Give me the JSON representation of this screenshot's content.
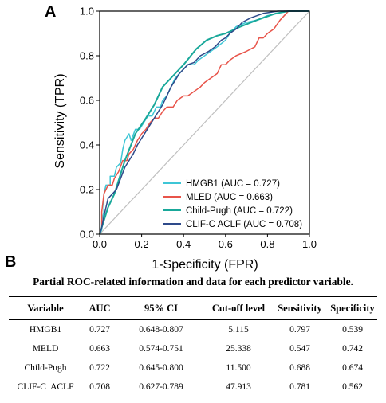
{
  "panel_a_label": "A",
  "panel_b_label": "B",
  "chart_data": {
    "type": "line",
    "title": "",
    "xlabel": "1-Specificity (FPR)",
    "ylabel": "Sensitivity (TPR)",
    "xlim": [
      0,
      1
    ],
    "ylim": [
      0,
      1
    ],
    "x_ticks": [
      "0.0",
      "0.2",
      "0.4",
      "0.6",
      "0.8",
      "1.0"
    ],
    "y_ticks": [
      "0.0",
      "0.2",
      "0.4",
      "0.6",
      "0.8",
      "1.0"
    ],
    "grid": false,
    "legend_position": "bottom-right",
    "diagonal_color": "#bfbfbf",
    "series": [
      {
        "name": "HMGB1 (AUC = 0.727)",
        "color": "#3ec6d6",
        "points": [
          [
            0,
            0
          ],
          [
            0.01,
            0.02
          ],
          [
            0.01,
            0.06
          ],
          [
            0.02,
            0.1
          ],
          [
            0.02,
            0.18
          ],
          [
            0.03,
            0.22
          ],
          [
            0.05,
            0.22
          ],
          [
            0.05,
            0.26
          ],
          [
            0.07,
            0.26
          ],
          [
            0.08,
            0.3
          ],
          [
            0.1,
            0.32
          ],
          [
            0.11,
            0.38
          ],
          [
            0.12,
            0.42
          ],
          [
            0.14,
            0.45
          ],
          [
            0.15,
            0.42
          ],
          [
            0.17,
            0.47
          ],
          [
            0.19,
            0.47
          ],
          [
            0.21,
            0.5
          ],
          [
            0.23,
            0.53
          ],
          [
            0.25,
            0.53
          ],
          [
            0.27,
            0.57
          ],
          [
            0.29,
            0.57
          ],
          [
            0.3,
            0.6
          ],
          [
            0.32,
            0.62
          ],
          [
            0.34,
            0.66
          ],
          [
            0.36,
            0.7
          ],
          [
            0.38,
            0.72
          ],
          [
            0.4,
            0.74
          ],
          [
            0.42,
            0.76
          ],
          [
            0.45,
            0.76
          ],
          [
            0.47,
            0.78
          ],
          [
            0.5,
            0.8
          ],
          [
            0.53,
            0.82
          ],
          [
            0.56,
            0.84
          ],
          [
            0.6,
            0.87
          ],
          [
            0.62,
            0.9
          ],
          [
            0.65,
            0.93
          ],
          [
            0.7,
            0.95
          ],
          [
            0.75,
            0.96
          ],
          [
            0.8,
            0.98
          ],
          [
            0.85,
            0.99
          ],
          [
            0.88,
            1.0
          ],
          [
            1.0,
            1.0
          ]
        ]
      },
      {
        "name": "MLED (AUC = 0.663)",
        "color": "#e8544a",
        "points": [
          [
            0,
            0
          ],
          [
            0.01,
            0.03
          ],
          [
            0.01,
            0.1
          ],
          [
            0.02,
            0.18
          ],
          [
            0.04,
            0.22
          ],
          [
            0.06,
            0.22
          ],
          [
            0.07,
            0.25
          ],
          [
            0.09,
            0.28
          ],
          [
            0.11,
            0.33
          ],
          [
            0.13,
            0.33
          ],
          [
            0.14,
            0.36
          ],
          [
            0.16,
            0.38
          ],
          [
            0.18,
            0.42
          ],
          [
            0.2,
            0.45
          ],
          [
            0.22,
            0.47
          ],
          [
            0.24,
            0.5
          ],
          [
            0.26,
            0.52
          ],
          [
            0.28,
            0.52
          ],
          [
            0.3,
            0.55
          ],
          [
            0.32,
            0.57
          ],
          [
            0.35,
            0.57
          ],
          [
            0.37,
            0.6
          ],
          [
            0.4,
            0.62
          ],
          [
            0.42,
            0.62
          ],
          [
            0.45,
            0.64
          ],
          [
            0.48,
            0.66
          ],
          [
            0.5,
            0.68
          ],
          [
            0.53,
            0.7
          ],
          [
            0.56,
            0.72
          ],
          [
            0.58,
            0.76
          ],
          [
            0.6,
            0.76
          ],
          [
            0.62,
            0.78
          ],
          [
            0.65,
            0.8
          ],
          [
            0.7,
            0.82
          ],
          [
            0.74,
            0.84
          ],
          [
            0.76,
            0.88
          ],
          [
            0.78,
            0.88
          ],
          [
            0.8,
            0.9
          ],
          [
            0.83,
            0.92
          ],
          [
            0.86,
            0.96
          ],
          [
            0.9,
            1.0
          ],
          [
            1.0,
            1.0
          ]
        ]
      },
      {
        "name": "Child-Pugh (AUC = 0.722)",
        "color": "#19a89a",
        "points": [
          [
            0,
            0
          ],
          [
            0.01,
            0.03
          ],
          [
            0.04,
            0.12
          ],
          [
            0.07,
            0.18
          ],
          [
            0.12,
            0.33
          ],
          [
            0.17,
            0.45
          ],
          [
            0.22,
            0.52
          ],
          [
            0.26,
            0.58
          ],
          [
            0.3,
            0.66
          ],
          [
            0.34,
            0.7
          ],
          [
            0.4,
            0.76
          ],
          [
            0.46,
            0.83
          ],
          [
            0.51,
            0.87
          ],
          [
            0.56,
            0.89
          ],
          [
            0.6,
            0.9
          ],
          [
            0.67,
            0.93
          ],
          [
            0.75,
            0.96
          ],
          [
            0.84,
            0.99
          ],
          [
            0.9,
            1.0
          ],
          [
            1.0,
            1.0
          ]
        ]
      },
      {
        "name": "CLIF-C ACLF (AUC = 0.708)",
        "color": "#2e4a8a",
        "points": [
          [
            0,
            0
          ],
          [
            0.01,
            0.03
          ],
          [
            0.02,
            0.08
          ],
          [
            0.03,
            0.12
          ],
          [
            0.04,
            0.16
          ],
          [
            0.06,
            0.18
          ],
          [
            0.08,
            0.2
          ],
          [
            0.1,
            0.25
          ],
          [
            0.12,
            0.3
          ],
          [
            0.14,
            0.33
          ],
          [
            0.16,
            0.36
          ],
          [
            0.18,
            0.4
          ],
          [
            0.2,
            0.43
          ],
          [
            0.22,
            0.46
          ],
          [
            0.24,
            0.49
          ],
          [
            0.26,
            0.52
          ],
          [
            0.28,
            0.55
          ],
          [
            0.3,
            0.58
          ],
          [
            0.32,
            0.62
          ],
          [
            0.34,
            0.66
          ],
          [
            0.36,
            0.69
          ],
          [
            0.38,
            0.72
          ],
          [
            0.4,
            0.74
          ],
          [
            0.42,
            0.76
          ],
          [
            0.45,
            0.77
          ],
          [
            0.48,
            0.8
          ],
          [
            0.52,
            0.82
          ],
          [
            0.55,
            0.84
          ],
          [
            0.58,
            0.87
          ],
          [
            0.6,
            0.88
          ],
          [
            0.62,
            0.9
          ],
          [
            0.65,
            0.92
          ],
          [
            0.68,
            0.95
          ],
          [
            0.72,
            0.97
          ],
          [
            0.78,
            0.99
          ],
          [
            0.85,
            1.0
          ],
          [
            1.0,
            1.0
          ]
        ]
      }
    ]
  },
  "table": {
    "title": "Partial ROC-related information and data for each predictor variable.",
    "headers": [
      "Variable",
      "AUC",
      "95% CI",
      "Cut-off level",
      "Sensitivity",
      "Specificity"
    ],
    "rows": [
      [
        "HMGB1",
        "0.727",
        "0.648-0.807",
        "5.115",
        "0.797",
        "0.539"
      ],
      [
        "MELD",
        "0.663",
        "0.574-0.751",
        "25.338",
        "0.547",
        "0.742"
      ],
      [
        "Child-Pugh",
        "0.722",
        "0.645-0.800",
        "11.500",
        "0.688",
        "0.674"
      ],
      [
        "CLIF-C  ACLF",
        "0.708",
        "0.627-0.789",
        "47.913",
        "0.781",
        "0.562"
      ]
    ]
  }
}
